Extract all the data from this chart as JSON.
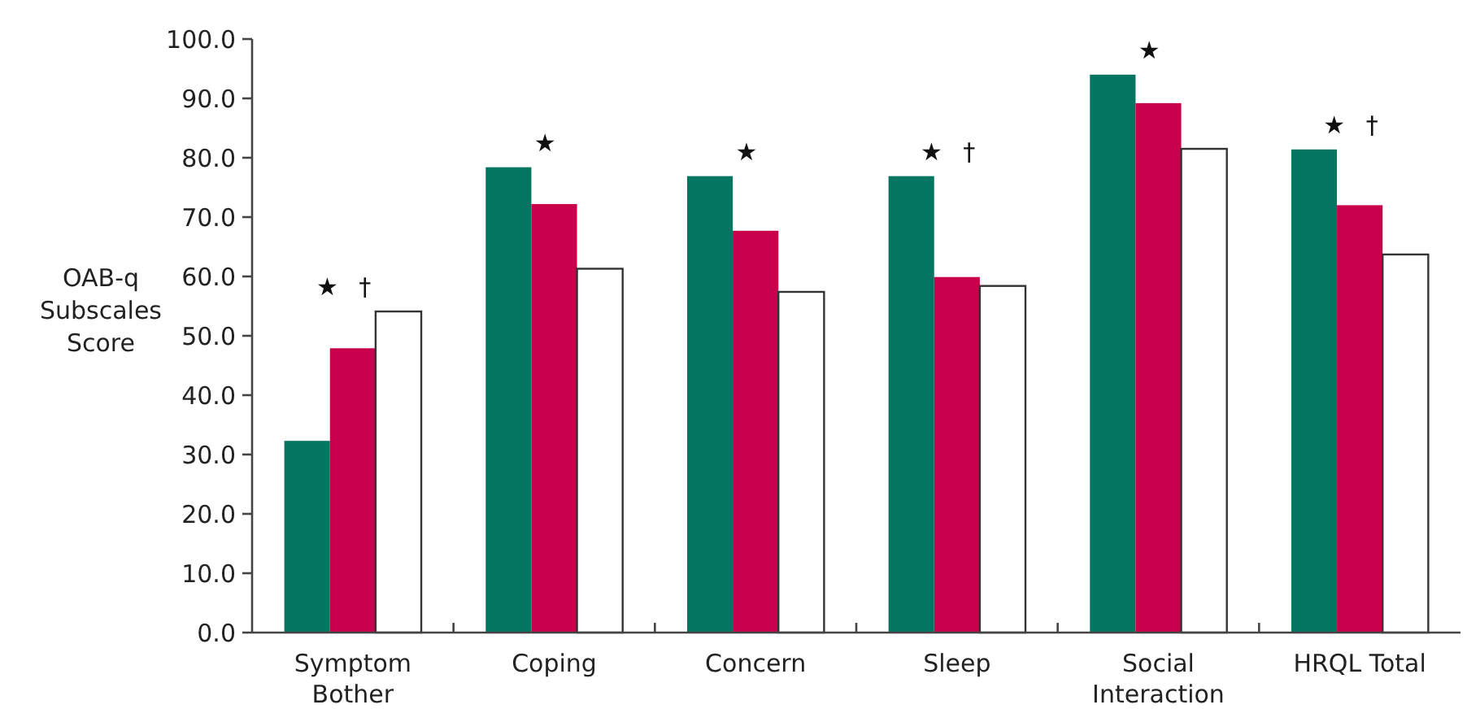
{
  "chart_data": {
    "type": "bar",
    "ylabel": "OAB-q Subscales Score",
    "categories": [
      "Symptom Bother",
      "Coping",
      "Concern",
      "Sleep",
      "Social Interaction",
      "HRQL Total"
    ],
    "series": [
      {
        "color": "#047560",
        "values": [
          32.3,
          78.4,
          76.9,
          76.9,
          94.0,
          81.4
        ]
      },
      {
        "color": "#c8004c",
        "values": [
          47.9,
          72.2,
          67.7,
          59.9,
          89.2,
          72.0
        ]
      },
      {
        "color": "#ffffff",
        "values": [
          54.1,
          61.3,
          57.4,
          58.4,
          81.5,
          63.7
        ]
      }
    ],
    "ylim": [
      0,
      100
    ],
    "yticks": [
      {
        "value": 0,
        "label": "0.0"
      },
      {
        "value": 10,
        "label": "10.0"
      },
      {
        "value": 20,
        "label": "20.0"
      },
      {
        "value": 30,
        "label": "30.0"
      },
      {
        "value": 40,
        "label": "40.0"
      },
      {
        "value": 50,
        "label": "50.0"
      },
      {
        "value": 60,
        "label": "60.0"
      },
      {
        "value": 70,
        "label": "70.0"
      },
      {
        "value": 80,
        "label": "80.0"
      },
      {
        "value": 90,
        "label": "90.0"
      },
      {
        "value": 100,
        "label": "100.0"
      }
    ],
    "annotations": [
      "★ †",
      "★",
      "★",
      "★ †",
      "★",
      "★ †"
    ],
    "grid": false
  }
}
